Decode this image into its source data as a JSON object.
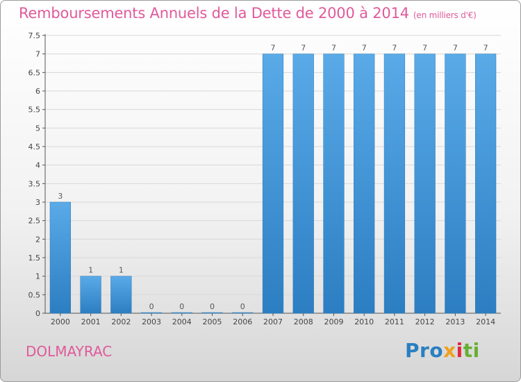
{
  "header": {
    "title": "Remboursements Annuels de la Dette de 2000 à 2014",
    "unit": "(en milliers d'€)"
  },
  "footer": {
    "commune": "DOLMAYRAC",
    "logo": [
      "Pro",
      "x",
      "i",
      "ti"
    ]
  },
  "chart_data": {
    "type": "bar",
    "title": "Remboursements Annuels de la Dette de 2000 à 2014",
    "xlabel": "",
    "ylabel": "",
    "categories": [
      "2000",
      "2001",
      "2002",
      "2003",
      "2004",
      "2005",
      "2006",
      "2007",
      "2008",
      "2009",
      "2010",
      "2011",
      "2012",
      "2013",
      "2014"
    ],
    "values": [
      3,
      1,
      1,
      0,
      0,
      0,
      0,
      7,
      7,
      7,
      7,
      7,
      7,
      7,
      7
    ],
    "ylim": [
      0,
      7.5
    ],
    "yticks": [
      "0",
      "0.5",
      "1",
      "1.5",
      "2",
      "2.5",
      "3",
      "3.5",
      "4",
      "4.5",
      "5",
      "5.5",
      "6",
      "6.5",
      "7",
      "7.5"
    ],
    "ytick_values": [
      0,
      0.5,
      1,
      1.5,
      2,
      2.5,
      3,
      3.5,
      4,
      4.5,
      5,
      5.5,
      6,
      6.5,
      7,
      7.5
    ],
    "grid": true,
    "colors": {
      "bar_top": "#5aaae8",
      "bar_bottom": "#2c7ec2",
      "grid": "#d8d8d8",
      "accent": "#e05a9a"
    }
  }
}
